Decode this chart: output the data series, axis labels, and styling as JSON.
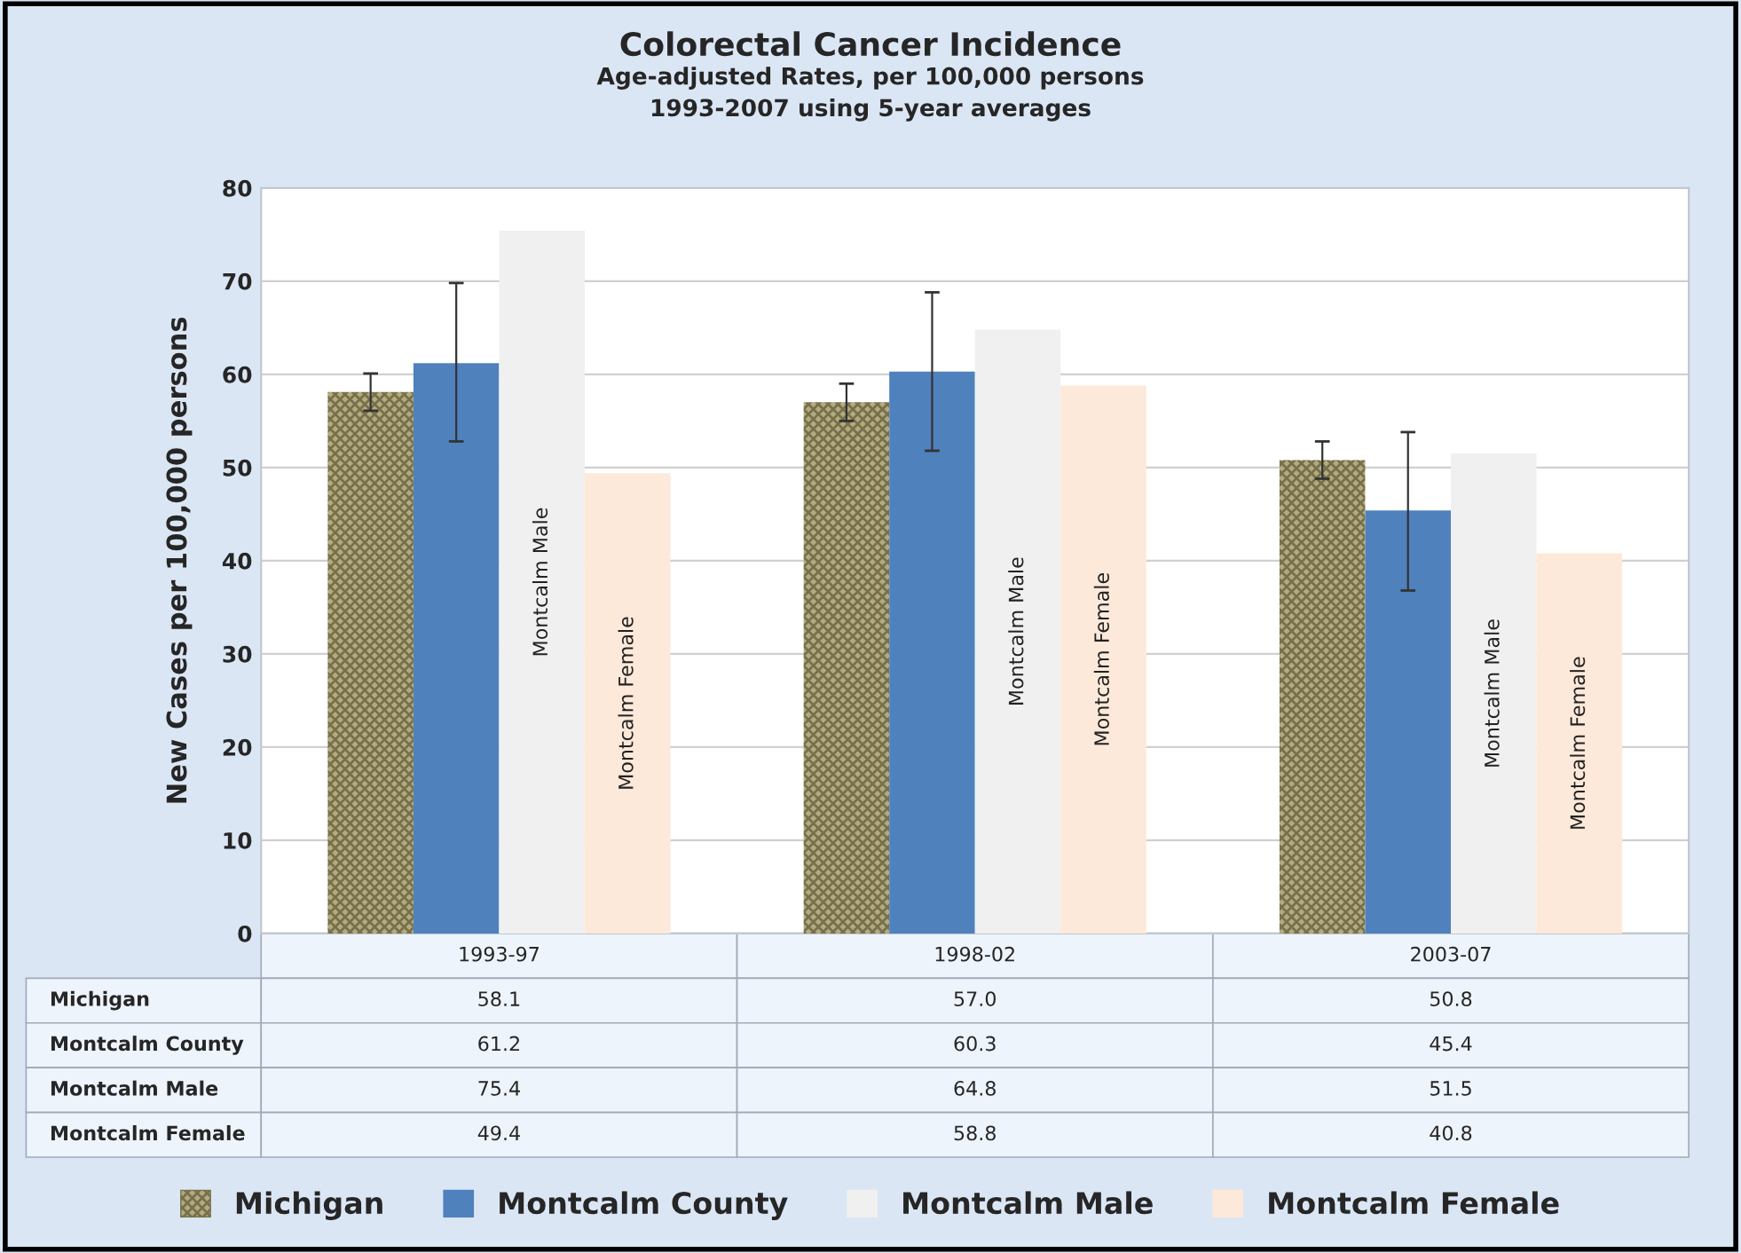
{
  "chart_data": {
    "type": "bar",
    "title": "Colorectal Cancer Incidence",
    "subtitle": "Age-adjusted Rates, per 100,000 persons\n1993-2007 using 5-year averages",
    "ylabel": "New Cases per 100,000 persons",
    "categories": [
      "1993-97",
      "1998-02",
      "2003-07"
    ],
    "series": [
      {
        "name": "Michigan",
        "color": "#b3ab80",
        "values": [
          58.1,
          57.0,
          50.8
        ],
        "value_labels": [
          "58.1",
          "57.0",
          "50.8"
        ],
        "errors": [
          [
            56.1,
            60.1
          ],
          [
            55.0,
            59.0
          ],
          [
            48.8,
            52.8
          ]
        ]
      },
      {
        "name": "Montcalm County",
        "color": "#4f81bd",
        "values": [
          61.2,
          60.3,
          45.4
        ],
        "value_labels": [
          "61.2",
          "60.3",
          "45.4"
        ],
        "errors": [
          [
            52.8,
            69.8
          ],
          [
            51.8,
            68.8
          ],
          [
            36.8,
            53.8
          ]
        ]
      },
      {
        "name": "Montcalm Male",
        "color": "#f0f0f0",
        "values": [
          75.4,
          64.8,
          51.5
        ],
        "value_labels": [
          "75.4",
          "64.8",
          "51.5"
        ]
      },
      {
        "name": "Montcalm Female",
        "color": "#fde9d9",
        "values": [
          49.4,
          58.8,
          40.8
        ],
        "value_labels": [
          "49.4",
          "58.8",
          "40.8"
        ]
      }
    ],
    "annotations": [
      "Montcalm Male",
      "Montcalm Female",
      "Montcalm Male",
      "Montcalm Female",
      "Montcalm Male",
      "Montcalm Female"
    ],
    "ylim": [
      0,
      80
    ],
    "yticks": [
      0,
      10,
      20,
      30,
      40,
      50,
      60,
      70,
      80
    ],
    "grid": "y",
    "legend": "bottom"
  }
}
